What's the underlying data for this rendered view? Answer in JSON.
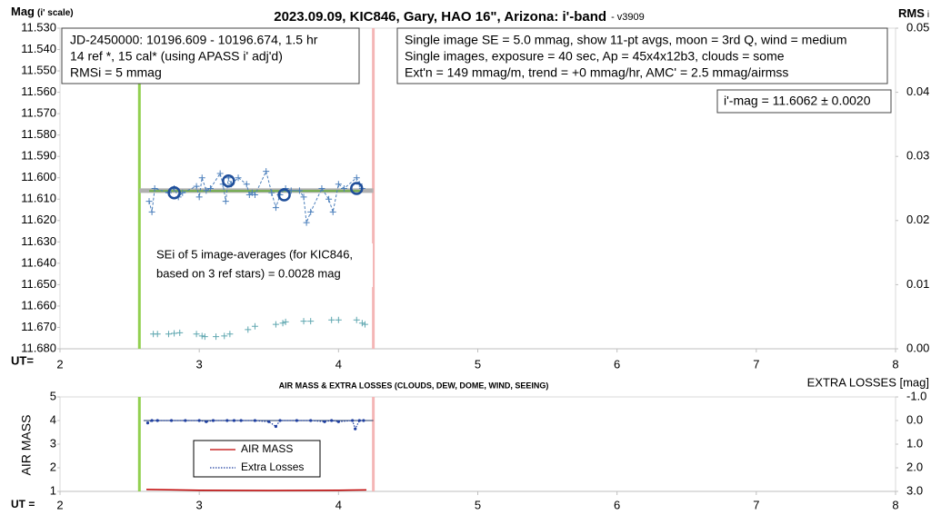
{
  "chart_data": [
    {
      "type": "line",
      "title": "2023.09.09, KIC846, Gary, HAO 16\", Arizona: i'-band",
      "subtitle": "- v3909",
      "ylabel": [
        "Mag",
        "(i' scale)"
      ],
      "y2label": [
        "RMS",
        "i"
      ],
      "xlabel": "UT=",
      "xlim": [
        2,
        8
      ],
      "xticks": [
        2,
        3,
        4,
        5,
        6,
        7,
        8
      ],
      "ylim": [
        11.68,
        11.53
      ],
      "yticks": [
        {
          "value": 11.53,
          "label": "11.530"
        },
        {
          "value": 11.54,
          "label": "11.540"
        },
        {
          "value": 11.55,
          "label": "11.550"
        },
        {
          "value": 11.56,
          "label": "11.560"
        },
        {
          "value": 11.57,
          "label": "11.570"
        },
        {
          "value": 11.58,
          "label": "11.580"
        },
        {
          "value": 11.59,
          "label": "11.590"
        },
        {
          "value": 11.6,
          "label": "11.600"
        },
        {
          "value": 11.61,
          "label": "11.610"
        },
        {
          "value": 11.62,
          "label": "11.620"
        },
        {
          "value": 11.63,
          "label": "11.630"
        },
        {
          "value": 11.64,
          "label": "11.640"
        },
        {
          "value": 11.65,
          "label": "11.650"
        },
        {
          "value": 11.66,
          "label": "11.660"
        },
        {
          "value": 11.67,
          "label": "11.670"
        },
        {
          "value": 11.68,
          "label": "11.680"
        }
      ],
      "y2lim": [
        0,
        0.05
      ],
      "y2ticks": [
        {
          "value": 0,
          "label": "0.00"
        },
        0.01,
        0.02,
        0.03,
        0.04,
        0.05
      ],
      "grid": false,
      "vlines": [
        {
          "x": 2.57,
          "color": "#92d050"
        },
        {
          "x": 4.25,
          "color": "#f4b6b6"
        }
      ],
      "series": [
        {
          "color": "#b0b0b0",
          "x": [
            2.57,
            4.25
          ],
          "values": [
            11.606,
            11.606
          ],
          "line": "solid",
          "width": 5,
          "marker": "none"
        },
        {
          "color": "#70ad47",
          "x": [
            2.64,
            4.17
          ],
          "values": [
            11.6062,
            11.6062
          ],
          "line": "solid",
          "width": 2,
          "marker": "none"
        },
        {
          "color": "#4a7ebb",
          "x": [
            2.64,
            2.66,
            2.68,
            2.78,
            2.82,
            2.85,
            2.88,
            2.98,
            3.0,
            3.02,
            3.05,
            3.08,
            3.15,
            3.17,
            3.19,
            3.21,
            3.23,
            3.28,
            3.34,
            3.36,
            3.38,
            3.4,
            3.48,
            3.52,
            3.55,
            3.58,
            3.62,
            3.66,
            3.72,
            3.75,
            3.77,
            3.8,
            3.88,
            3.93,
            3.96,
            4.0,
            4.04,
            4.13,
            4.15,
            4.17
          ],
          "values": [
            11.611,
            11.616,
            11.605,
            11.607,
            11.605,
            11.609,
            11.607,
            11.604,
            11.609,
            11.6,
            11.606,
            11.605,
            11.598,
            11.603,
            11.611,
            11.6,
            11.603,
            11.6,
            11.603,
            11.608,
            11.607,
            11.608,
            11.597,
            11.607,
            11.614,
            11.608,
            11.605,
            11.606,
            11.606,
            11.609,
            11.621,
            11.616,
            11.605,
            11.61,
            11.616,
            11.603,
            11.605,
            11.6,
            11.603,
            11.605
          ],
          "line": "dashed",
          "width": 1,
          "marker": "plus"
        },
        {
          "color": "#1f4e9a",
          "x": [
            2.82,
            3.21,
            3.61,
            4.13
          ],
          "values": [
            11.607,
            11.6015,
            11.608,
            11.605
          ],
          "line": "none",
          "marker": "circle"
        },
        {
          "color": "#5fa7b0",
          "axis": "y2",
          "x": [
            2.67,
            2.7,
            2.78,
            2.82,
            2.86,
            2.98,
            3.02,
            3.04,
            3.12,
            3.18,
            3.22,
            3.35,
            3.4,
            3.55,
            3.6,
            3.62,
            3.75,
            3.8,
            3.95,
            4.0,
            4.13,
            4.17,
            4.19
          ],
          "values": [
            0.0023,
            0.0023,
            0.0023,
            0.0024,
            0.0025,
            0.0023,
            0.002,
            0.0019,
            0.0019,
            0.002,
            0.0023,
            0.003,
            0.0035,
            0.0038,
            0.004,
            0.0042,
            0.0043,
            0.0043,
            0.0045,
            0.0045,
            0.0045,
            0.004,
            0.0038
          ],
          "line": "none",
          "marker": "plus"
        }
      ],
      "annotations": [
        [
          "JD-2450000: 10196.609 - 10196.674, 1.5  hr",
          "14 ref *, 15 cal* (using APASS i' adj'd)",
          "RMSi = 5 mmag"
        ],
        [
          "Single image SE = 5.0 mmag, show 11-pt avgs, moon = 3rd Q, wind = medium",
          "Single images, exposure = 40 sec, Ap = 45x4x12b3, clouds = some",
          "Ext'n = 149 mmag/m, trend = +0 mmag/hr, AMC' = 2.5 mmag/airmss"
        ],
        [
          "i'-mag = 11.6062 ± 0.0020"
        ],
        [
          "SEi of 5 image-averages (for KIC846,",
          "based on 3 ref stars) = 0.0028 mag"
        ]
      ]
    },
    {
      "type": "line",
      "title": "AIR MASS & EXTRA LOSSES (CLOUDS, DEW, DOME, WIND, SEEING)",
      "ylabel": [
        "AIR MASS"
      ],
      "y2label": [
        "EXTRA LOSSES [mag]"
      ],
      "xlabel": "UT =",
      "xlim": [
        2,
        8
      ],
      "xticks": [
        2,
        3,
        4,
        5,
        6,
        7,
        8
      ],
      "ylim": [
        1,
        5
      ],
      "yticks": [
        1,
        2,
        3,
        4,
        5
      ],
      "y2lim": [
        3,
        -1
      ],
      "y2ticks": [
        {
          "value": -1,
          "label": "-1.0"
        },
        {
          "value": 0,
          "label": "0.0"
        },
        {
          "value": 1,
          "label": "1.0"
        },
        {
          "value": 2,
          "label": "2.0"
        },
        {
          "value": 3,
          "label": "3.0"
        }
      ],
      "grid": false,
      "vlines": [
        {
          "x": 2.57,
          "color": "#92d050"
        },
        {
          "x": 4.25,
          "color": "#f4b6b6"
        }
      ],
      "series": [
        {
          "color": "#1f3864",
          "axis": "y2",
          "x": [
            2.6,
            4.25
          ],
          "values": [
            0,
            0
          ],
          "line": "solid",
          "width": 1,
          "marker": "none"
        },
        {
          "name": "AIR MASS",
          "color": "#c00000",
          "x": [
            2.62,
            3.0,
            3.5,
            4.0,
            4.2
          ],
          "values": [
            1.08,
            1.05,
            1.04,
            1.05,
            1.06
          ],
          "line": "solid",
          "width": 1.5,
          "marker": "none"
        },
        {
          "name": "Extra Losses",
          "color": "#1f3fa0",
          "axis": "y2",
          "x": [
            2.63,
            2.66,
            2.7,
            2.8,
            2.9,
            3.0,
            3.05,
            3.1,
            3.2,
            3.25,
            3.3,
            3.4,
            3.5,
            3.55,
            3.58,
            3.7,
            3.8,
            3.9,
            3.95,
            4.0,
            4.1,
            4.12,
            4.15,
            4.18
          ],
          "values": [
            0.1,
            0,
            0,
            0,
            0,
            0,
            0.05,
            0,
            0,
            0,
            0,
            0,
            0.05,
            0.25,
            0,
            0,
            0,
            0.05,
            0,
            0.05,
            0,
            0.35,
            0,
            0
          ],
          "line": "dotted",
          "width": 1.2,
          "marker": "dot"
        }
      ]
    }
  ]
}
